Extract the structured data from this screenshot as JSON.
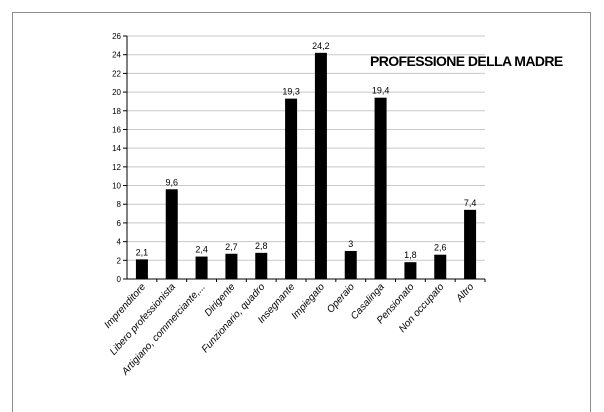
{
  "chart_data": {
    "type": "bar",
    "title": "PROFESSIONE DELLA MADRE",
    "xlabel": "",
    "ylabel": "",
    "ylim": [
      0,
      26
    ],
    "yticks": [
      0,
      2,
      4,
      6,
      8,
      10,
      12,
      14,
      16,
      18,
      20,
      22,
      24,
      26
    ],
    "grid": true,
    "categories": [
      "Imprenditore",
      "Libero professionista",
      "Artigiano, commerciante,...",
      "Dirigente",
      "Funzionario, quadro",
      "Insegnante",
      "Impiegato",
      "Operaio",
      "Casalinga",
      "Pensionato",
      "Non occupato",
      "Altro"
    ],
    "values": [
      2.1,
      9.6,
      2.4,
      2.7,
      2.8,
      19.3,
      24.2,
      3,
      19.4,
      1.8,
      2.6,
      7.4
    ],
    "value_labels": [
      "2,1",
      "9,6",
      "2,4",
      "2,7",
      "2,8",
      "19,3",
      "24,2",
      "3",
      "19,4",
      "1,8",
      "2,6",
      "7,4"
    ],
    "bar_color": "#000000",
    "grid_color": "#c8c8c8"
  }
}
